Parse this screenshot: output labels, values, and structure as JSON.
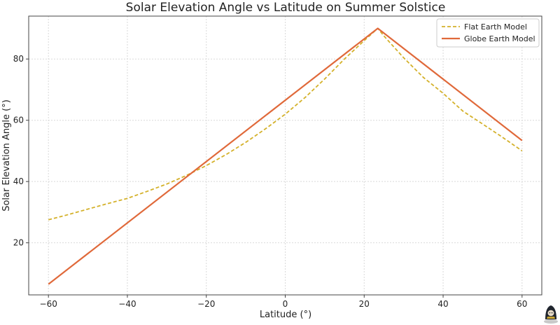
{
  "chart_data": {
    "type": "line",
    "title": "Solar Elevation Angle vs Latitude on Summer Solstice",
    "xlabel": "Latitude (°)",
    "ylabel": "Solar Elevation Angle (°)",
    "xlim": [
      -65,
      65
    ],
    "ylim": [
      3,
      94
    ],
    "xticks": [
      -60,
      -40,
      -20,
      0,
      20,
      40,
      60
    ],
    "yticks": [
      20,
      40,
      60,
      80
    ],
    "grid": true,
    "legend_position": "top-right",
    "series": [
      {
        "name": "Flat Earth Model",
        "style": "dashed",
        "color": "#d4b12a",
        "x": [
          -60,
          -55,
          -50,
          -45,
          -40,
          -35,
          -30,
          -25,
          -20,
          -15,
          -10,
          -5,
          0,
          5,
          10,
          15,
          20,
          23.44,
          25,
          30,
          35,
          40,
          45,
          50,
          55,
          60
        ],
        "y": [
          27.5,
          29.2,
          31.0,
          32.8,
          34.5,
          36.8,
          39.2,
          42.0,
          45.2,
          48.8,
          52.8,
          57.2,
          62.0,
          67.4,
          73.5,
          80.0,
          86.0,
          90.0,
          87.5,
          80.4,
          74.0,
          68.8,
          63.0,
          58.8,
          54.5,
          50.0
        ]
      },
      {
        "name": "Globe Earth Model",
        "style": "solid",
        "color": "#e0693a",
        "x": [
          -60,
          23.44,
          60
        ],
        "y": [
          6.5,
          90.0,
          53.4
        ]
      }
    ]
  },
  "watermark": {
    "icon": "hooded-figure-icon"
  }
}
